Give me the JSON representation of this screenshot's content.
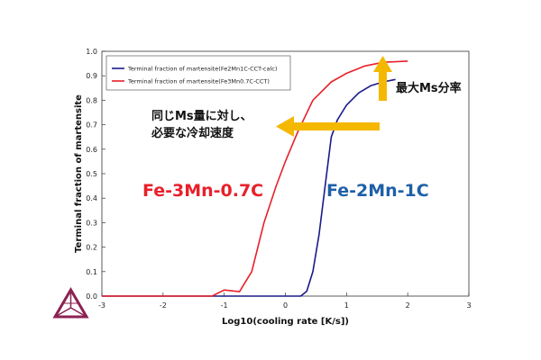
{
  "chart_data": {
    "type": "line",
    "xlabel": "Log10(cooling rate [K/s])",
    "ylabel": "Terminal fraction of martensite",
    "xlim": [
      -3,
      3
    ],
    "ylim": [
      0,
      1
    ],
    "x_ticks": [
      "-3",
      "-2",
      "-1",
      "0",
      "1",
      "2",
      "3"
    ],
    "y_ticks": [
      "0.0",
      "0.1",
      "0.2",
      "0.3",
      "0.4",
      "0.5",
      "0.6",
      "0.7",
      "0.8",
      "0.9",
      "1.0"
    ],
    "grid": false,
    "legend_position": "top-left",
    "series": [
      {
        "name": "Terminal fraction of martensite(Fe2Mn1C-CCT-calc)",
        "color": "#1a1a8c",
        "x": [
          -3,
          0.25,
          0.35,
          0.45,
          0.55,
          0.65,
          0.75,
          0.85,
          1.0,
          1.2,
          1.4,
          1.6,
          1.8
        ],
        "y": [
          0,
          0,
          0.02,
          0.1,
          0.25,
          0.45,
          0.65,
          0.72,
          0.78,
          0.83,
          0.86,
          0.875,
          0.885
        ]
      },
      {
        "name": "Terminal fraction of martensite(Fe3Mn0.7C-CCT)",
        "color": "#e8202a",
        "x": [
          -3,
          -1.6,
          -1.2,
          -1.0,
          -0.75,
          -0.55,
          -0.35,
          -0.15,
          0.0,
          0.2,
          0.45,
          0.75,
          1.0,
          1.3,
          1.6,
          2.0
        ],
        "y": [
          0,
          0,
          0,
          0.025,
          0.018,
          0.1,
          0.3,
          0.45,
          0.55,
          0.67,
          0.8,
          0.875,
          0.91,
          0.94,
          0.955,
          0.96
        ]
      }
    ]
  },
  "annotations": {
    "max_ms": "最大Ms分率",
    "required_rate_line1": "同じMs量に対し、",
    "required_rate_line2": "必要な冷却速度",
    "label_red": "Fe-3Mn-0.7C",
    "label_blue": "Fe-2Mn-1C"
  },
  "colors": {
    "arrow": "#f5b800",
    "red_label": "#e8202a",
    "blue_label": "#1f5fa8",
    "logo": "#8b2252"
  },
  "logo_icon": "thermo-calc-logo-icon"
}
